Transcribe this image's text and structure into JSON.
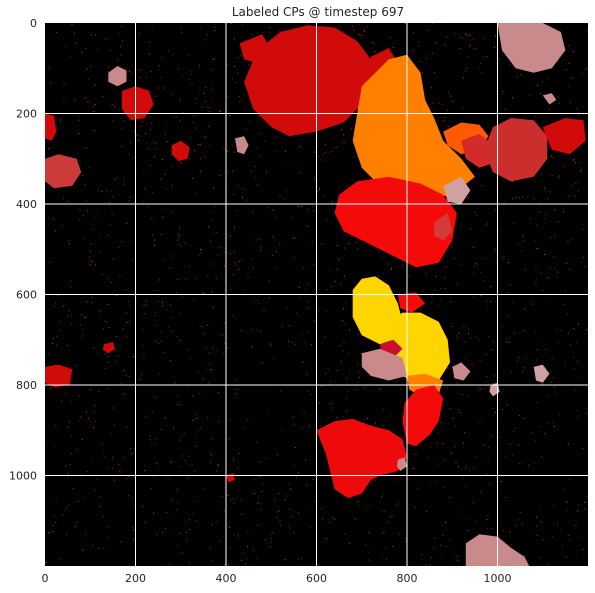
{
  "chart_data": {
    "type": "heatmap",
    "title": "Labeled CPs @ timestep 697",
    "xlabel": "",
    "ylabel": "",
    "xlim": [
      0,
      1200
    ],
    "ylim": [
      1200,
      0
    ],
    "y_inverted": true,
    "grid": true,
    "x_ticks": [
      0,
      200,
      400,
      600,
      800,
      1000
    ],
    "y_ticks": [
      0,
      200,
      400,
      600,
      800,
      1000
    ],
    "background_color": "#000000",
    "noise_color": "#e23a1f",
    "regions": [
      {
        "color": "#d10a0a",
        "points": [
          [
            470,
            60
          ],
          [
            520,
            20
          ],
          [
            580,
            5
          ],
          [
            640,
            10
          ],
          [
            690,
            40
          ],
          [
            720,
            80
          ],
          [
            730,
            130
          ],
          [
            700,
            180
          ],
          [
            660,
            220
          ],
          [
            600,
            240
          ],
          [
            540,
            250
          ],
          [
            500,
            230
          ],
          [
            460,
            190
          ],
          [
            440,
            130
          ]
        ]
      },
      {
        "color": "#d10a0a",
        "points": [
          [
            430,
            45
          ],
          [
            480,
            25
          ],
          [
            500,
            60
          ],
          [
            470,
            90
          ],
          [
            440,
            80
          ]
        ]
      },
      {
        "color": "#d10a0a",
        "points": [
          [
            720,
            75
          ],
          [
            760,
            55
          ],
          [
            790,
            110
          ],
          [
            740,
            170
          ],
          [
            700,
            150
          ]
        ]
      },
      {
        "color": "#ff7f00",
        "points": [
          [
            700,
            140
          ],
          [
            760,
            80
          ],
          [
            800,
            70
          ],
          [
            830,
            110
          ],
          [
            840,
            170
          ],
          [
            860,
            210
          ],
          [
            880,
            260
          ],
          [
            920,
            300
          ],
          [
            950,
            340
          ],
          [
            900,
            380
          ],
          [
            830,
            390
          ],
          [
            780,
            380
          ],
          [
            740,
            360
          ],
          [
            700,
            320
          ],
          [
            680,
            260
          ],
          [
            690,
            200
          ]
        ]
      },
      {
        "color": "#ff5a00",
        "points": [
          [
            880,
            240
          ],
          [
            920,
            220
          ],
          [
            960,
            225
          ],
          [
            980,
            250
          ],
          [
            960,
            280
          ],
          [
            920,
            290
          ],
          [
            890,
            270
          ]
        ]
      },
      {
        "color": "#d42a2a",
        "points": [
          [
            920,
            260
          ],
          [
            960,
            245
          ],
          [
            990,
            270
          ],
          [
            990,
            310
          ],
          [
            960,
            320
          ],
          [
            930,
            300
          ]
        ]
      },
      {
        "color": "#cc2e2e",
        "points": [
          [
            990,
            230
          ],
          [
            1030,
            210
          ],
          [
            1080,
            215
          ],
          [
            1110,
            250
          ],
          [
            1110,
            300
          ],
          [
            1080,
            340
          ],
          [
            1030,
            350
          ],
          [
            990,
            330
          ],
          [
            970,
            280
          ]
        ]
      },
      {
        "color": "#d10a0a",
        "points": [
          [
            1100,
            230
          ],
          [
            1150,
            210
          ],
          [
            1190,
            215
          ],
          [
            1195,
            260
          ],
          [
            1160,
            290
          ],
          [
            1120,
            280
          ]
        ]
      },
      {
        "color": "#f50a0a",
        "points": [
          [
            650,
            380
          ],
          [
            690,
            350
          ],
          [
            760,
            340
          ],
          [
            830,
            355
          ],
          [
            880,
            380
          ],
          [
            910,
            420
          ],
          [
            900,
            480
          ],
          [
            870,
            530
          ],
          [
            820,
            540
          ],
          [
            780,
            520
          ],
          [
            740,
            500
          ],
          [
            700,
            480
          ],
          [
            660,
            460
          ],
          [
            640,
            420
          ]
        ]
      },
      {
        "color": "#cfa1a1",
        "points": [
          [
            880,
            360
          ],
          [
            920,
            340
          ],
          [
            940,
            370
          ],
          [
            920,
            400
          ],
          [
            890,
            395
          ]
        ]
      },
      {
        "color": "#d43a3a",
        "points": [
          [
            860,
            440
          ],
          [
            890,
            420
          ],
          [
            900,
            460
          ],
          [
            880,
            480
          ],
          [
            860,
            470
          ]
        ]
      },
      {
        "color": "#ffd500",
        "points": [
          [
            680,
            590
          ],
          [
            700,
            565
          ],
          [
            730,
            560
          ],
          [
            760,
            580
          ],
          [
            780,
            620
          ],
          [
            790,
            660
          ],
          [
            770,
            700
          ],
          [
            740,
            710
          ],
          [
            700,
            690
          ],
          [
            680,
            650
          ]
        ]
      },
      {
        "color": "#ffd500",
        "points": [
          [
            760,
            660
          ],
          [
            790,
            640
          ],
          [
            830,
            640
          ],
          [
            870,
            660
          ],
          [
            890,
            700
          ],
          [
            895,
            750
          ],
          [
            870,
            790
          ],
          [
            830,
            800
          ],
          [
            790,
            780
          ],
          [
            770,
            740
          ]
        ]
      },
      {
        "color": "#f50a0a",
        "points": [
          [
            780,
            600
          ],
          [
            820,
            595
          ],
          [
            840,
            620
          ],
          [
            810,
            640
          ],
          [
            785,
            630
          ]
        ]
      },
      {
        "color": "#c8102e",
        "points": [
          [
            740,
            710
          ],
          [
            770,
            700
          ],
          [
            790,
            720
          ],
          [
            770,
            740
          ],
          [
            745,
            735
          ]
        ]
      },
      {
        "color": "#c88a8a",
        "points": [
          [
            700,
            730
          ],
          [
            740,
            720
          ],
          [
            790,
            740
          ],
          [
            800,
            780
          ],
          [
            760,
            790
          ],
          [
            720,
            780
          ],
          [
            700,
            760
          ]
        ]
      },
      {
        "color": "#ff7f00",
        "points": [
          [
            800,
            780
          ],
          [
            840,
            775
          ],
          [
            880,
            790
          ],
          [
            870,
            820
          ],
          [
            830,
            825
          ],
          [
            805,
            810
          ]
        ]
      },
      {
        "color": "#c88a8a",
        "points": [
          [
            900,
            760
          ],
          [
            920,
            750
          ],
          [
            940,
            770
          ],
          [
            925,
            790
          ],
          [
            905,
            785
          ]
        ]
      },
      {
        "color": "#f50a0a",
        "points": [
          [
            820,
            810
          ],
          [
            860,
            800
          ],
          [
            880,
            830
          ],
          [
            870,
            880
          ],
          [
            850,
            910
          ],
          [
            820,
            935
          ],
          [
            800,
            930
          ],
          [
            790,
            880
          ],
          [
            795,
            840
          ]
        ]
      },
      {
        "color": "#ee0a0a",
        "points": [
          [
            600,
            900
          ],
          [
            640,
            880
          ],
          [
            680,
            875
          ],
          [
            720,
            890
          ],
          [
            760,
            900
          ],
          [
            790,
            920
          ],
          [
            800,
            960
          ],
          [
            780,
            990
          ],
          [
            740,
            1000
          ],
          [
            720,
            1010
          ],
          [
            700,
            1040
          ],
          [
            670,
            1050
          ],
          [
            640,
            1030
          ],
          [
            630,
            990
          ],
          [
            620,
            950
          ]
        ]
      },
      {
        "color": "#c88a8a",
        "points": [
          [
            780,
            965
          ],
          [
            795,
            960
          ],
          [
            800,
            980
          ],
          [
            785,
            990
          ],
          [
            778,
            980
          ]
        ]
      },
      {
        "color": "#c88a8a",
        "points": [
          [
            1000,
            0
          ],
          [
            1100,
            0
          ],
          [
            1140,
            20
          ],
          [
            1150,
            60
          ],
          [
            1120,
            100
          ],
          [
            1080,
            110
          ],
          [
            1040,
            100
          ],
          [
            1010,
            60
          ]
        ]
      },
      {
        "color": "#d10a0a",
        "points": [
          [
            170,
            150
          ],
          [
            200,
            140
          ],
          [
            230,
            150
          ],
          [
            240,
            180
          ],
          [
            220,
            210
          ],
          [
            190,
            215
          ],
          [
            170,
            190
          ]
        ]
      },
      {
        "color": "#c88a8a",
        "points": [
          [
            140,
            110
          ],
          [
            160,
            95
          ],
          [
            180,
            105
          ],
          [
            180,
            130
          ],
          [
            160,
            140
          ],
          [
            140,
            130
          ]
        ]
      },
      {
        "color": "#d10a0a",
        "points": [
          [
            0,
            200
          ],
          [
            20,
            205
          ],
          [
            25,
            240
          ],
          [
            15,
            260
          ],
          [
            0,
            255
          ]
        ]
      },
      {
        "color": "#cc3a3a",
        "points": [
          [
            0,
            300
          ],
          [
            30,
            290
          ],
          [
            70,
            300
          ],
          [
            80,
            330
          ],
          [
            60,
            360
          ],
          [
            20,
            365
          ],
          [
            0,
            350
          ]
        ]
      },
      {
        "color": "#d10a0a",
        "points": [
          [
            280,
            270
          ],
          [
            300,
            260
          ],
          [
            320,
            275
          ],
          [
            315,
            300
          ],
          [
            295,
            305
          ],
          [
            280,
            290
          ]
        ]
      },
      {
        "color": "#c88a8a",
        "points": [
          [
            420,
            255
          ],
          [
            440,
            250
          ],
          [
            450,
            270
          ],
          [
            440,
            290
          ],
          [
            425,
            285
          ]
        ]
      },
      {
        "color": "#c88a8a",
        "points": [
          [
            1100,
            160
          ],
          [
            1120,
            155
          ],
          [
            1130,
            170
          ],
          [
            1115,
            180
          ]
        ]
      },
      {
        "color": "#d10a0a",
        "points": [
          [
            0,
            760
          ],
          [
            30,
            755
          ],
          [
            60,
            765
          ],
          [
            55,
            800
          ],
          [
            20,
            805
          ],
          [
            0,
            795
          ]
        ]
      },
      {
        "color": "#d10a0a",
        "points": [
          [
            130,
            710
          ],
          [
            150,
            705
          ],
          [
            155,
            720
          ],
          [
            140,
            730
          ],
          [
            128,
            722
          ]
        ]
      },
      {
        "color": "#cfa1a1",
        "points": [
          [
            1080,
            760
          ],
          [
            1100,
            755
          ],
          [
            1115,
            775
          ],
          [
            1100,
            795
          ],
          [
            1085,
            790
          ]
        ]
      },
      {
        "color": "#cfa1a1",
        "points": [
          [
            985,
            800
          ],
          [
            1000,
            795
          ],
          [
            1005,
            815
          ],
          [
            990,
            825
          ],
          [
            982,
            815
          ]
        ]
      },
      {
        "color": "#d10a0a",
        "points": [
          [
            400,
            1000
          ],
          [
            415,
            995
          ],
          [
            420,
            1010
          ],
          [
            405,
            1015
          ]
        ]
      },
      {
        "color": "#c88a8a",
        "points": [
          [
            930,
            1150
          ],
          [
            960,
            1130
          ],
          [
            1000,
            1135
          ],
          [
            1030,
            1160
          ],
          [
            1060,
            1180
          ],
          [
            1070,
            1200
          ],
          [
            930,
            1200
          ]
        ]
      }
    ]
  }
}
